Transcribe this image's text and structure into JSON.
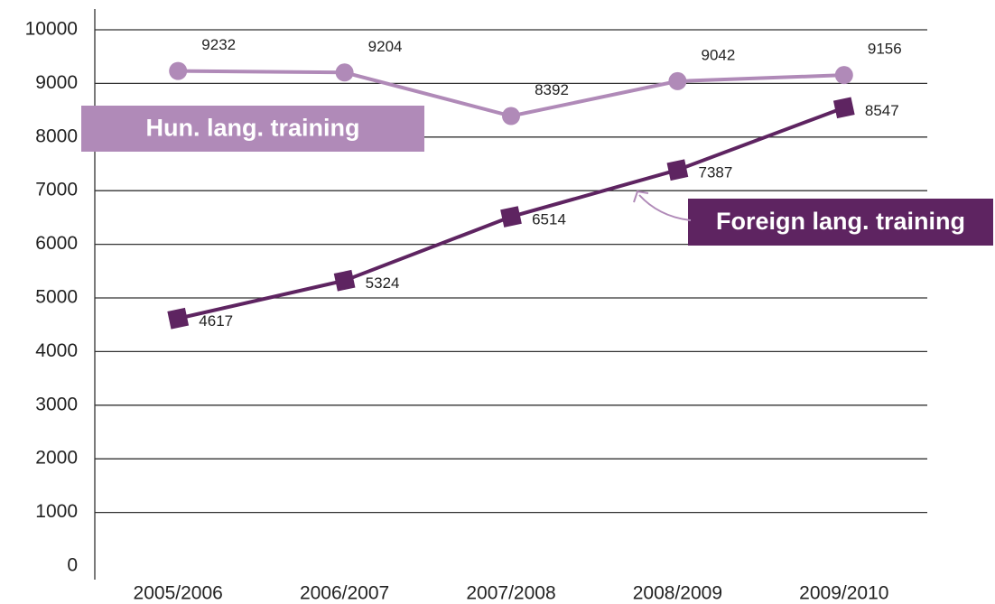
{
  "chart_data": {
    "type": "line",
    "categories": [
      "2005/2006",
      "2006/2007",
      "2007/2008",
      "2008/2009",
      "2009/2010"
    ],
    "series": [
      {
        "name": "Hun. lang. training",
        "color": "#b08ab8",
        "marker": "circle",
        "values": [
          9232,
          9204,
          8392,
          9042,
          9156
        ]
      },
      {
        "name": "Foreign lang. training",
        "color": "#5e2461",
        "marker": "square",
        "values": [
          4617,
          5324,
          6514,
          7387,
          8547
        ]
      }
    ],
    "ylim": [
      0,
      10000
    ],
    "yticks": [
      0,
      1000,
      2000,
      3000,
      4000,
      5000,
      6000,
      7000,
      8000,
      9000,
      10000
    ],
    "grid": true
  }
}
